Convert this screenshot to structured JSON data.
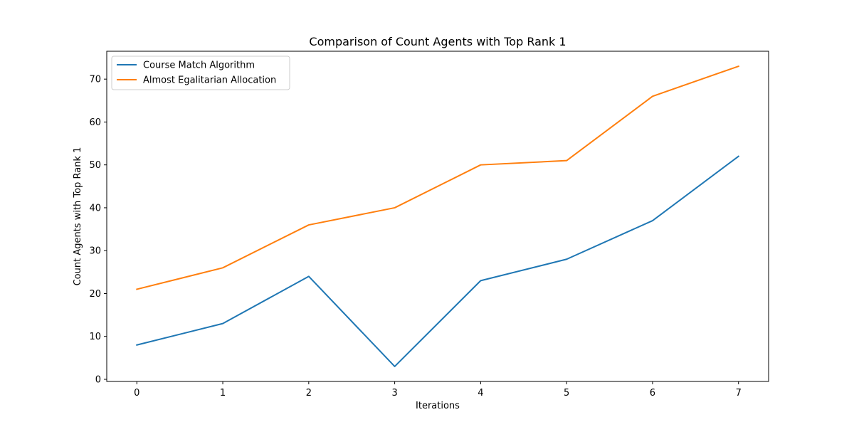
{
  "chart_data": {
    "type": "line",
    "title": "Comparison of Count Agents with Top Rank 1",
    "xlabel": "Iterations",
    "ylabel": "Count Agents with Top Rank 1",
    "x": [
      0,
      1,
      2,
      3,
      4,
      5,
      6,
      7
    ],
    "xlim": [
      -0.35,
      7.35
    ],
    "ylim": [
      -0.5,
      76.5
    ],
    "xticks": [
      0,
      1,
      2,
      3,
      4,
      5,
      6,
      7
    ],
    "yticks": [
      0,
      10,
      20,
      30,
      40,
      50,
      60,
      70
    ],
    "grid": false,
    "legend_position": "top-left",
    "series": [
      {
        "name": "Course Match Algorithm",
        "color": "#1f77b4",
        "values": [
          8,
          13,
          24,
          3,
          23,
          28,
          37,
          52
        ]
      },
      {
        "name": "Almost Egalitarian Allocation",
        "color": "#ff7f0e",
        "values": [
          21,
          26,
          36,
          40,
          50,
          51,
          66,
          73
        ]
      }
    ]
  }
}
